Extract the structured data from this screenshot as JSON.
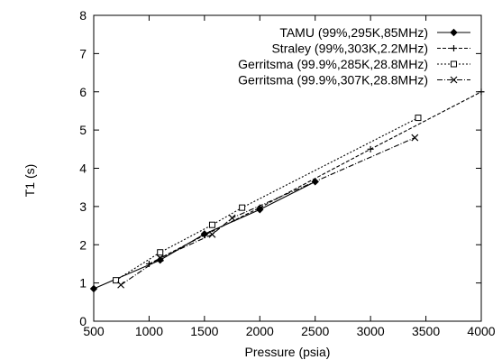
{
  "chart_data": {
    "type": "line",
    "xlabel": "Pressure (psia)",
    "ylabel": "T1 (s)",
    "xlim": [
      500,
      4000
    ],
    "ylim": [
      0,
      8
    ],
    "xticks": [
      500,
      1000,
      1500,
      2000,
      2500,
      3000,
      3500,
      4000
    ],
    "yticks": [
      0,
      1,
      2,
      3,
      4,
      5,
      6,
      7,
      8
    ],
    "grid": false,
    "legend_position": "top-right",
    "series": [
      {
        "name": "TAMU (99%,295K,85MHz)",
        "marker": "diamond",
        "dash": "solid",
        "x": [
          500,
          1100,
          1500,
          2000,
          2500
        ],
        "y": [
          0.85,
          1.6,
          2.28,
          2.92,
          3.65
        ]
      },
      {
        "name": "Straley (99%,303K,2.2MHz)",
        "marker": "plus",
        "dash": "dashed",
        "x": [
          1000,
          1500,
          2000,
          3000,
          4000
        ],
        "y": [
          1.5,
          2.25,
          2.97,
          4.5,
          6.0
        ]
      },
      {
        "name": "Gerritsma (99.9%,285K,28.8MHz)",
        "marker": "square",
        "dash": "dotted",
        "x": [
          700,
          1100,
          1570,
          1840,
          3430
        ],
        "y": [
          1.07,
          1.8,
          2.52,
          2.97,
          5.32
        ]
      },
      {
        "name": "Gerritsma (99.9%,307K,28.8MHz)",
        "marker": "x",
        "dash": "dash-dot",
        "x": [
          745,
          1100,
          1570,
          1750,
          3400
        ],
        "y": [
          0.95,
          1.65,
          2.27,
          2.7,
          4.8
        ]
      }
    ]
  }
}
